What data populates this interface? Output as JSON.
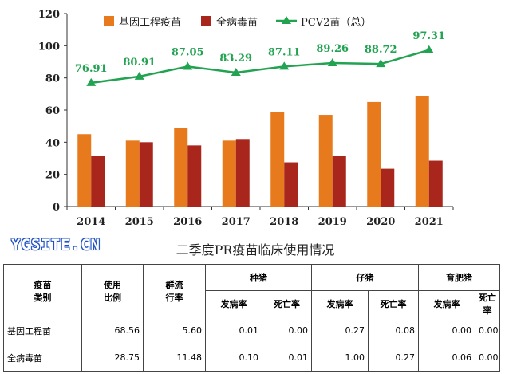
{
  "chart_data": {
    "type": "bar",
    "categories": [
      "2014",
      "2015",
      "2016",
      "2017",
      "2018",
      "2019",
      "2020",
      "2021"
    ],
    "series": [
      {
        "name": "基因工程疫苗",
        "kind": "bar",
        "color": "#e87a1e",
        "values": [
          45,
          41,
          49,
          41,
          59,
          57,
          65,
          68.5
        ]
      },
      {
        "name": "全病毒苗",
        "kind": "bar",
        "color": "#a8261b",
        "values": [
          31.5,
          40,
          38,
          42,
          27.5,
          31.5,
          23.5,
          28.5
        ]
      },
      {
        "name": "PCV2苗（总）",
        "kind": "line",
        "color": "#22a352",
        "marker": "triangle",
        "values": [
          76.91,
          80.91,
          87.05,
          83.29,
          87.11,
          89.26,
          88.72,
          97.31
        ],
        "labels": [
          "76.91",
          "80.91",
          "87.05",
          "83.29",
          "87.11",
          "89.26",
          "88.72",
          "97.31"
        ]
      }
    ],
    "ylim": [
      0,
      120
    ],
    "yticks": [
      "0",
      "20",
      "40",
      "60",
      "80",
      "100",
      "120"
    ],
    "legend": "top",
    "grid": false,
    "xlabel": "",
    "ylabel": ""
  },
  "watermark": "YGSITE.CN",
  "table": {
    "title": "二季度PR疫苗临床使用情况",
    "headers": {
      "vaccine_type": "疫苗\n类别",
      "usage_ratio": "使用\n比例",
      "prevalence": "群流\n行率",
      "group_sow": "种猪",
      "group_piglet": "仔猪",
      "group_finisher": "育肥猪",
      "morbidity": "发病率",
      "mortality": "死亡率"
    },
    "rows": [
      {
        "name": "基因工程苗",
        "usage": "68.56",
        "prev": "5.60",
        "sow_m": "0.01",
        "sow_d": "0.00",
        "pig_m": "0.27",
        "pig_d": "0.08",
        "fin_m": "0.00",
        "fin_d": "0.00"
      },
      {
        "name": "全病毒苗",
        "usage": "28.75",
        "prev": "11.48",
        "sow_m": "0.10",
        "sow_d": "0.01",
        "pig_m": "1.00",
        "pig_d": "0.27",
        "fin_m": "0.06",
        "fin_d": "0.00"
      }
    ]
  }
}
